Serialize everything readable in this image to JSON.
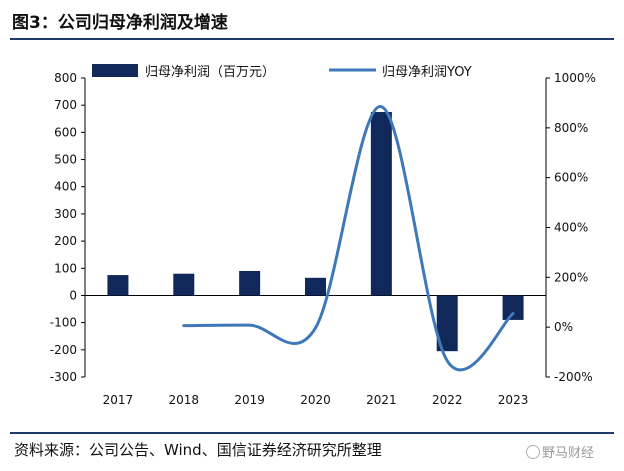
{
  "title": "图3：公司归母净利润及增速",
  "source": "资料来源：公司公告、Wind、国信证券经济研究所整理",
  "watermark": "野马财经",
  "colors": {
    "bar": "#10295a",
    "line": "#3f78b8",
    "rule": "#1e3a6b"
  },
  "chart_data": {
    "type": "bar",
    "categories": [
      "2017",
      "2018",
      "2019",
      "2020",
      "2021",
      "2022",
      "2023"
    ],
    "series": [
      {
        "name": "归母净利润（百万元）",
        "type": "bar",
        "axis": "left",
        "values": [
          75,
          80,
          90,
          65,
          675,
          -205,
          -90
        ]
      },
      {
        "name": "归母净利润YOY",
        "type": "line",
        "axis": "right",
        "values": [
          null,
          6,
          8,
          -3,
          885,
          -135,
          55
        ]
      }
    ],
    "y_left": {
      "min": -300,
      "max": 800,
      "ticks": [
        800,
        700,
        600,
        500,
        400,
        300,
        200,
        100,
        0,
        -100,
        -200,
        -300
      ]
    },
    "y_right": {
      "min": -200,
      "max": 1000,
      "ticks": [
        "1000%",
        "800%",
        "600%",
        "400%",
        "200%",
        "0%",
        "-200%"
      ]
    },
    "legend_position": "top",
    "grid": false
  }
}
